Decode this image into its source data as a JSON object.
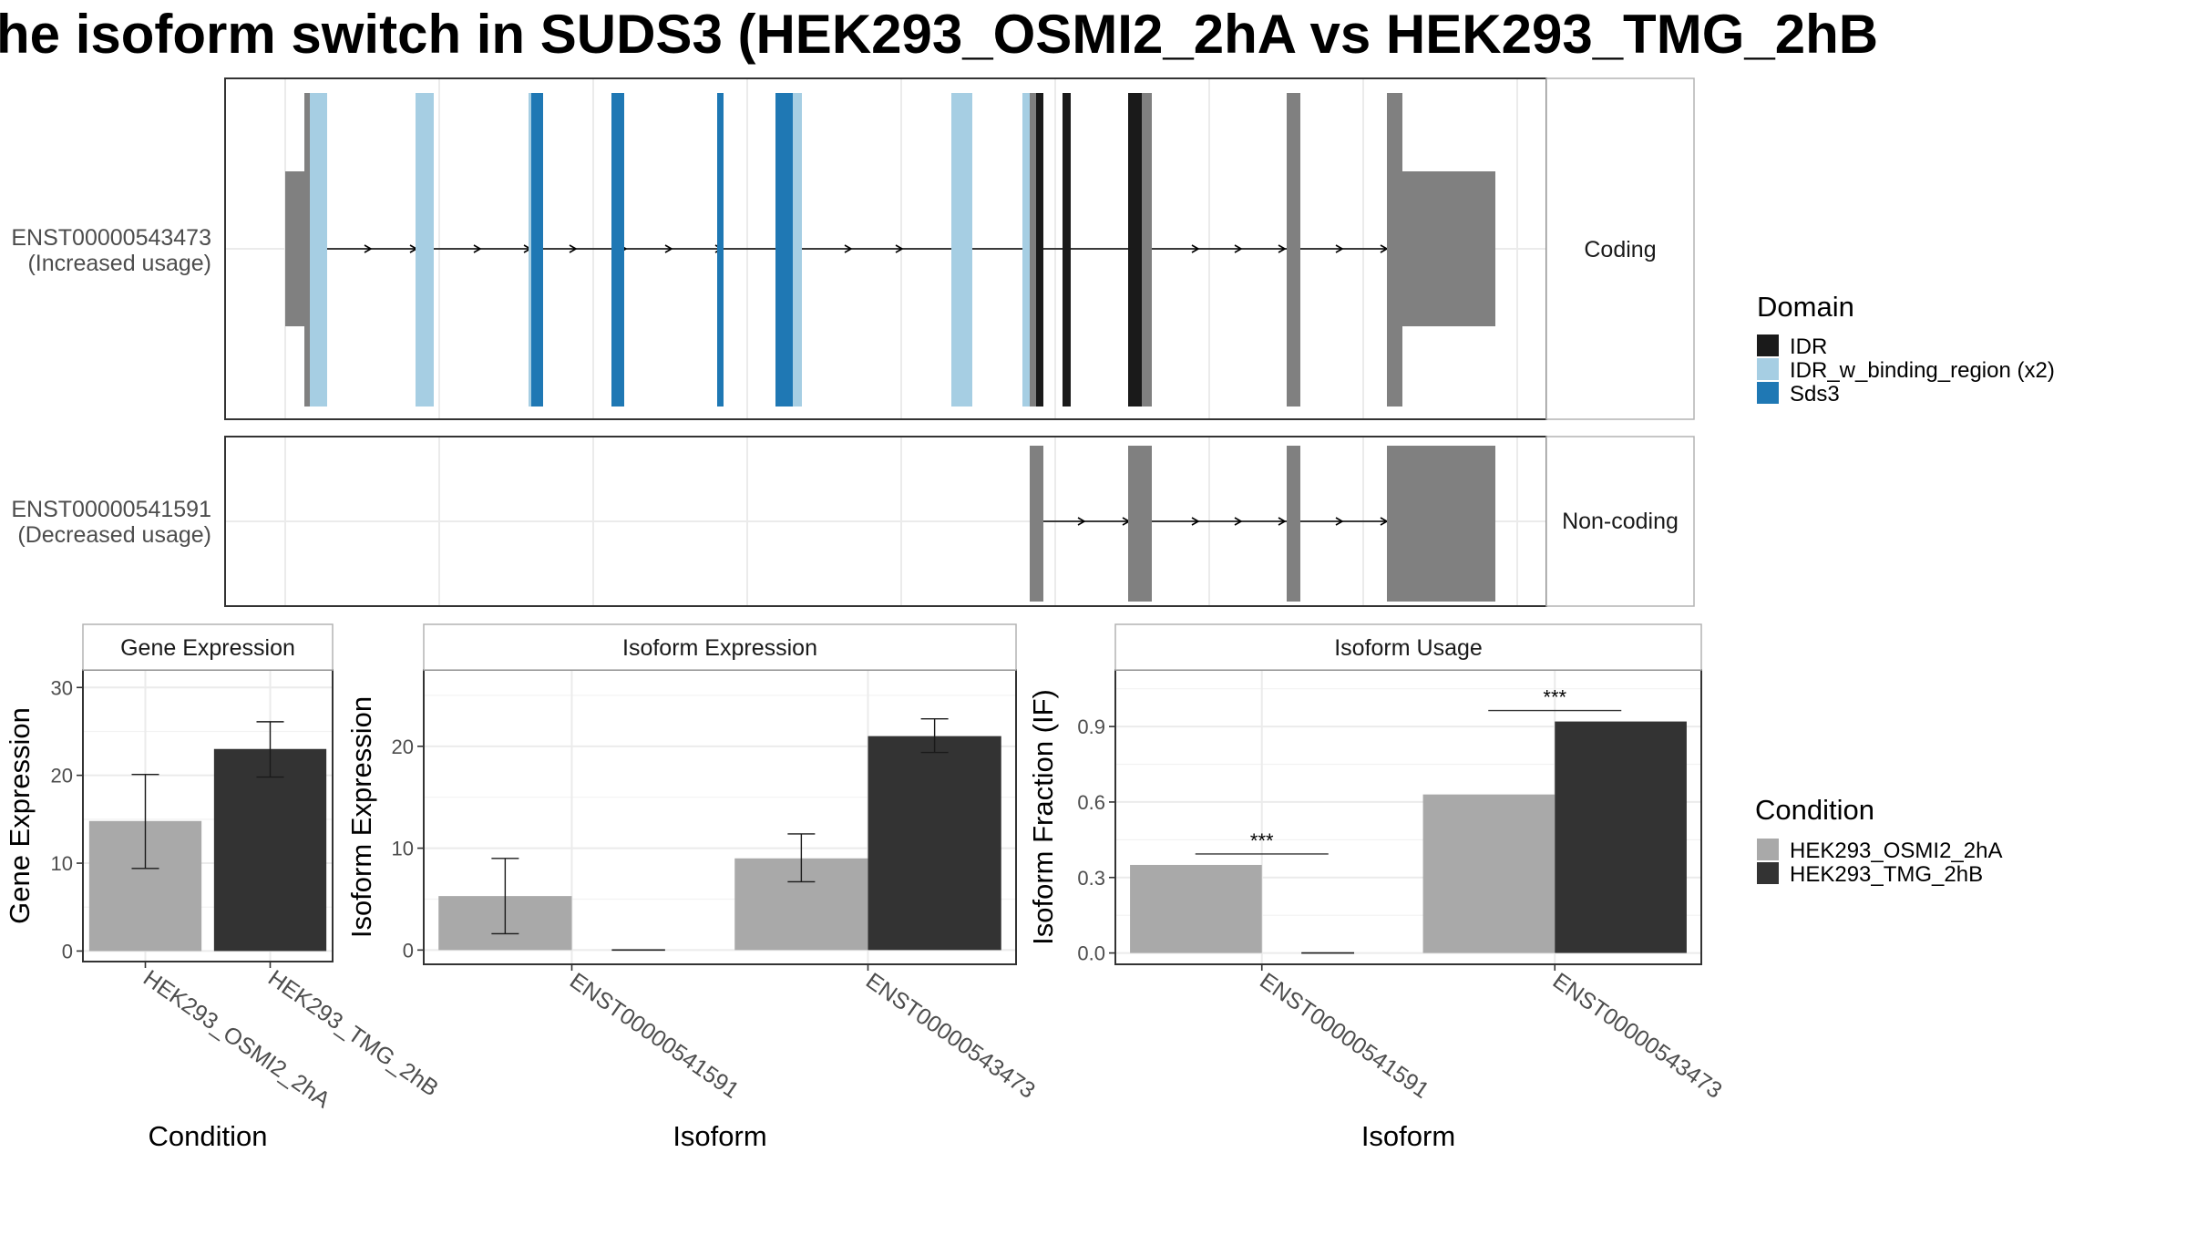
{
  "title": "he isoform switch in SUDS3 (HEK293_OSMI2_2hA vs HEK293_TMG_2hB",
  "colors": {
    "IDR": "#1a1a1a",
    "IDR_w_binding_region": "#a6cee3",
    "Sds3": "#1f78b4",
    "exon_grey": "#808080",
    "cond_A": "#a9a9a9",
    "cond_B": "#333333"
  },
  "structure": {
    "strip_labels": [
      "Coding",
      "Non-coding"
    ],
    "isoforms": [
      {
        "id": "ENST00000543473",
        "usage": "(Increased usage)"
      },
      {
        "id": "ENST00000541591",
        "usage": "(Decreased usage)"
      }
    ]
  },
  "legends": {
    "domain": {
      "title": "Domain",
      "items": [
        "IDR",
        "IDR_w_binding_region (x2)",
        "Sds3"
      ]
    },
    "condition": {
      "title": "Condition",
      "items": [
        "HEK293_OSMI2_2hA",
        "HEK293_TMG_2hB"
      ]
    }
  },
  "chart_data": [
    {
      "type": "bar",
      "title": "Gene Expression",
      "xlabel": "Condition",
      "ylabel": "Gene Expression",
      "categories": [
        "HEK293_OSMI2_2hA",
        "HEK293_TMG_2hB"
      ],
      "values": [
        14.8,
        23.0
      ],
      "errors_low": [
        9.4,
        19.8
      ],
      "errors_high": [
        20.1,
        26.1
      ],
      "ylim": [
        -1.2,
        32
      ],
      "yticks": [
        "0",
        "10",
        "20",
        "30"
      ]
    },
    {
      "type": "bar",
      "title": "Isoform Expression",
      "xlabel": "Isoform",
      "ylabel": "Isoform Expression",
      "categories": [
        "ENST00000541591",
        "ENST00000543473"
      ],
      "series": [
        {
          "values": [
            5.3,
            9.0
          ],
          "errors_low": [
            1.6,
            6.7
          ],
          "errors_high": [
            9.0,
            11.4
          ]
        },
        {
          "values": [
            0.0,
            21.0
          ],
          "errors_low": [
            0.0,
            19.4
          ],
          "errors_high": [
            0.0,
            22.7
          ]
        }
      ],
      "ylim": [
        -1.4,
        27.5
      ],
      "yticks": [
        "0",
        "10",
        "20"
      ]
    },
    {
      "type": "bar",
      "title": "Isoform Usage",
      "xlabel": "Isoform",
      "ylabel": "Isoform Fraction (IF)",
      "categories": [
        "ENST00000541591",
        "ENST00000543473"
      ],
      "series": [
        {
          "values": [
            0.35,
            0.63
          ]
        },
        {
          "values": [
            0.0,
            0.92
          ]
        }
      ],
      "annotations": [
        "***",
        "***"
      ],
      "ylim": [
        -0.045,
        1.125
      ],
      "yticks": [
        "0.0",
        "0.3",
        "0.6",
        "0.9"
      ]
    }
  ]
}
